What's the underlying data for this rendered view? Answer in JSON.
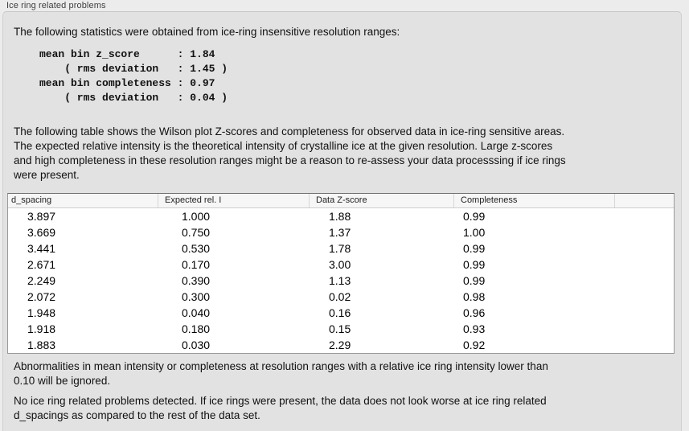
{
  "panel": {
    "title": "Ice ring related problems"
  },
  "intro": {
    "text": "The following statistics were obtained from ice-ring insensitive resolution ranges:",
    "stats_block": "mean bin z_score      : 1.84\n    ( rms deviation   : 1.45 )\nmean bin completeness : 0.97\n    ( rms deviation   : 0.04 )"
  },
  "description": "The following table shows the Wilson plot Z-scores and completeness for observed data in ice-ring sensitive areas.\nThe expected relative intensity is the theoretical intensity of crystalline ice at the given resolution. Large z-scores\nand high completeness in these resolution ranges might be a reason to re-assess your data processsing if ice rings\nwere present.",
  "table": {
    "columns": [
      "d_spacing",
      "Expected rel. I",
      "Data Z-score",
      "Completeness"
    ],
    "rows": [
      [
        "3.897",
        "1.000",
        "1.88",
        "0.99"
      ],
      [
        "3.669",
        "0.750",
        "1.37",
        "1.00"
      ],
      [
        "3.441",
        "0.530",
        "1.78",
        "0.99"
      ],
      [
        "2.671",
        "0.170",
        "3.00",
        "0.99"
      ],
      [
        "2.249",
        "0.390",
        "1.13",
        "0.99"
      ],
      [
        "2.072",
        "0.300",
        "0.02",
        "0.98"
      ],
      [
        "1.948",
        "0.040",
        "0.16",
        "0.96"
      ],
      [
        "1.918",
        "0.180",
        "0.15",
        "0.93"
      ],
      [
        "1.883",
        "0.030",
        "2.29",
        "0.92"
      ]
    ]
  },
  "notes": {
    "ignore_note": "Abnormalities in mean intensity or completeness at resolution ranges with a relative ice ring intensity lower than\n0.10 will be ignored.",
    "conclusion": "No ice ring related problems detected. If ice rings were present, the data does not look worse at ice ring related\nd_spacings as compared to the rest of the data set."
  },
  "colors": {
    "page_background": "#ececec",
    "box_background": "#e2e2e2",
    "box_border": "#cfcfcf",
    "table_background": "#ffffff",
    "table_border": "#9a9a9a",
    "table_header_background": "#f6f6f6",
    "text": "#111111"
  }
}
